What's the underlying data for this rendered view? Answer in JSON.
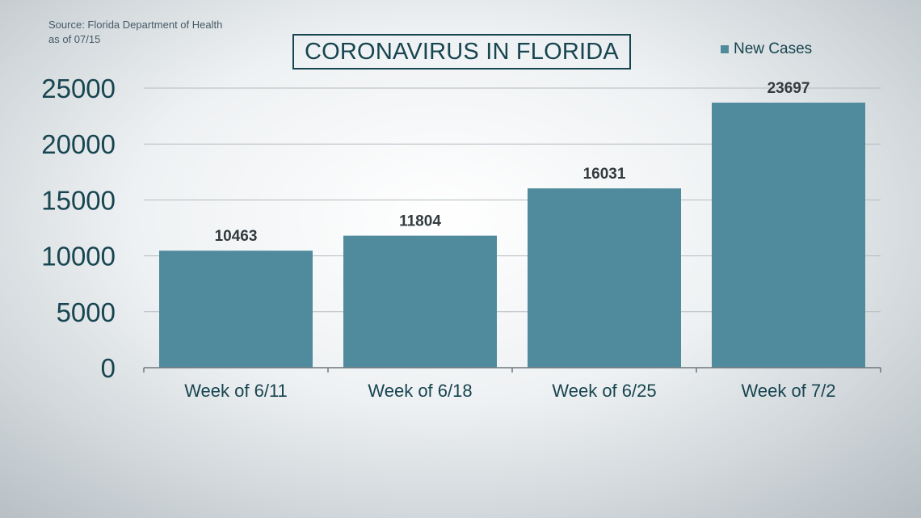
{
  "source": {
    "line1": "Source: Florida Department of Health",
    "line2": "as of 07/15"
  },
  "chart_data": {
    "type": "bar",
    "title": "CORONAVIRUS IN FLORIDA",
    "categories": [
      "Week of 6/11",
      "Week of 6/18",
      "Week of 6/25",
      "Week of 7/2"
    ],
    "series": [
      {
        "name": "New Cases",
        "values": [
          10463,
          11804,
          16031,
          23697
        ]
      }
    ],
    "yticks": [
      0,
      5000,
      10000,
      15000,
      20000,
      25000
    ],
    "ylim": [
      0,
      25000
    ],
    "grid": true,
    "legend_position": "top-right",
    "bar_color": "#4f8b9d"
  }
}
